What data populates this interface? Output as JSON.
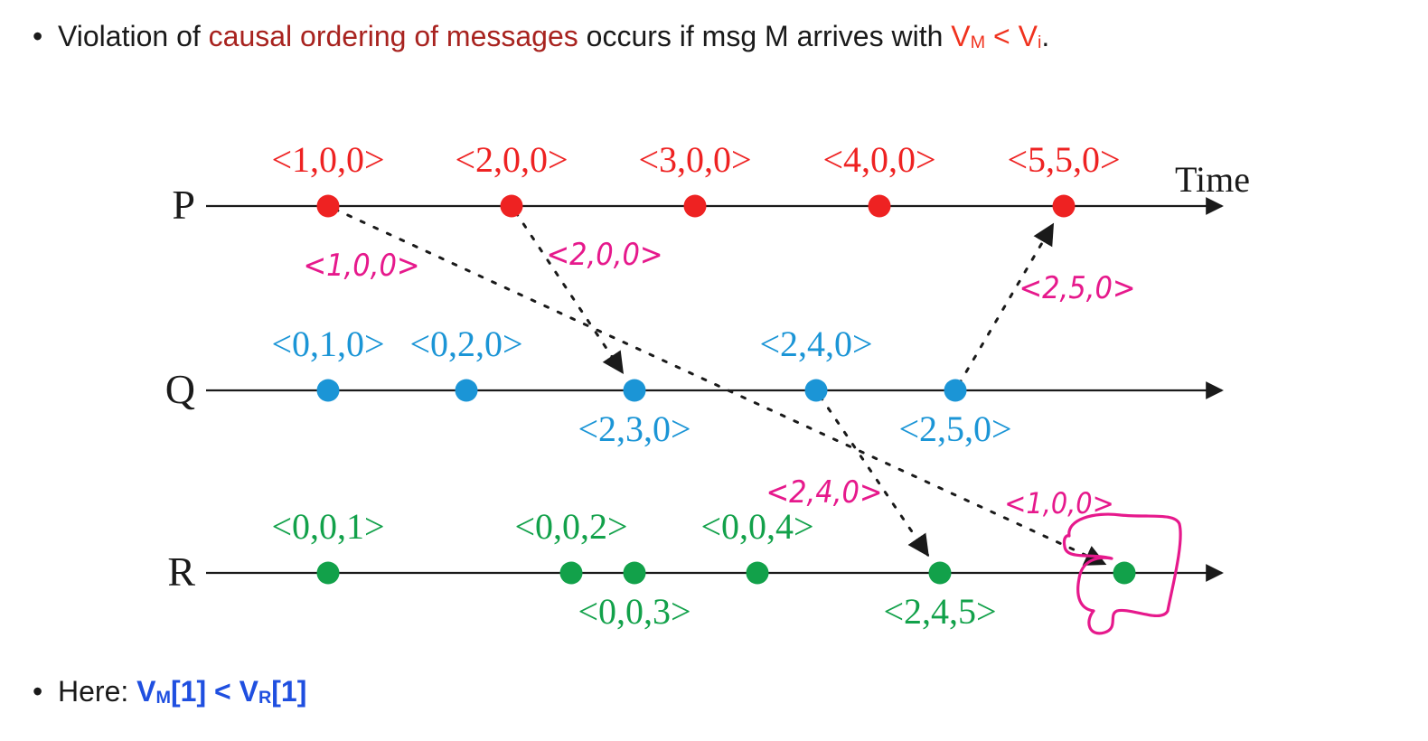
{
  "intro": {
    "bullet": "•",
    "text_before": "Violation of ",
    "highlight": "causal ordering of messages",
    "text_middle": " occurs if msg M arrives with ",
    "vm_base": "V",
    "vm_sub": "M",
    "lt": " < ",
    "vi_base": "V",
    "vi_sub": "i",
    "period": "."
  },
  "footer": {
    "bullet": "•",
    "prefix": "Here: ",
    "vm_base": "V",
    "vm_sub": "M",
    "vm_index": "[1]",
    "lt": " < ",
    "vr_base": "V",
    "vr_sub": "R",
    "vr_index": "[1]"
  },
  "diagram": {
    "time_label": "Time",
    "colors": {
      "P": "#ee2222",
      "Q": "#1b95d6",
      "R": "#12a14a",
      "annotation": "#e6198c",
      "line": "#1a1a1a"
    },
    "processes": [
      {
        "name": "P",
        "events": [
          {
            "label": "<1,0,0>",
            "label_pos": "above"
          },
          {
            "label": "<2,0,0>",
            "label_pos": "above"
          },
          {
            "label": "<3,0,0>",
            "label_pos": "above"
          },
          {
            "label": "<4,0,0>",
            "label_pos": "above"
          },
          {
            "label": "<5,5,0>",
            "label_pos": "above"
          }
        ]
      },
      {
        "name": "Q",
        "events": [
          {
            "label": "<0,1,0>",
            "label_pos": "above"
          },
          {
            "label": "<0,2,0>",
            "label_pos": "above"
          },
          {
            "label": "<2,3,0>",
            "label_pos": "below"
          },
          {
            "label": "<2,4,0>",
            "label_pos": "above"
          },
          {
            "label": "<2,5,0>",
            "label_pos": "below"
          }
        ]
      },
      {
        "name": "R",
        "events": [
          {
            "label": "<0,0,1>",
            "label_pos": "above"
          },
          {
            "label": "<0,0,2>",
            "label_pos": "above"
          },
          {
            "label": "<0,0,3>",
            "label_pos": "below"
          },
          {
            "label": "<0,0,4>",
            "label_pos": "above"
          },
          {
            "label": "<2,4,5>",
            "label_pos": "below"
          },
          {
            "label": "",
            "label_pos": "none"
          }
        ]
      }
    ],
    "messages": [
      {
        "from": "P-1",
        "to": "R-6",
        "annotation": "<1,0,0>",
        "annotation_alt": "<1,0,0>"
      },
      {
        "from": "P-2",
        "to": "Q-3",
        "annotation": "<2,0,0>"
      },
      {
        "from": "Q-4",
        "to": "R-5",
        "annotation": "<2,4,0>"
      },
      {
        "from": "Q-5",
        "to": "P-5",
        "annotation": "<2,5,0>"
      }
    ]
  }
}
